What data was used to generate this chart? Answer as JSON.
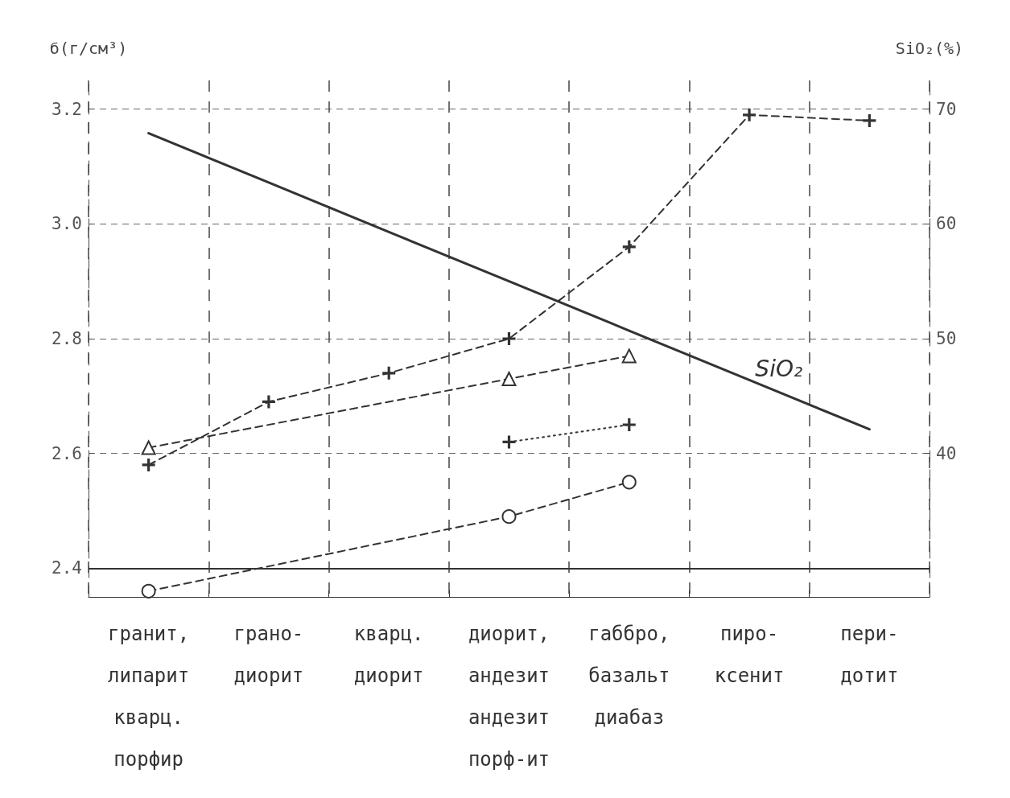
{
  "chart_data": {
    "type": "line",
    "ylabel": "б(г/см³)",
    "y2label": "SiO₂(%)",
    "categories": [
      "гранит,\nлипарит\nкварц.\nпорфир",
      "грано-\nдиорит",
      "кварц.\nдиорит",
      "диорит,\nандезит\nандезит\nпорф-ит",
      "габбро,\nбазальт\nдиабаз",
      "пиро-\nксенит",
      "пери-\nдотит"
    ],
    "ylim": [
      2.35,
      3.25
    ],
    "yticks": [
      2.4,
      2.6,
      2.8,
      {
        "value": 3,
        "label": "3.0"
      },
      3.2
    ],
    "y2lim": [
      27.5,
      72.5
    ],
    "y2ticks": [
      40,
      50,
      60,
      70
    ],
    "grid": true,
    "legend": false,
    "ref_lines": [
      {
        "axis": "y",
        "value": 2.4,
        "color": "#333333",
        "line_style": "solid"
      }
    ],
    "series": [
      {
        "name": "SiO₂",
        "axis": "y2",
        "color": "#333333",
        "marker": "none",
        "line_style": "solid",
        "values": [
          67.9,
          63.6,
          59.3,
          55.0,
          50.7,
          46.4,
          42.1
        ]
      },
      {
        "color": "#333333",
        "marker": "cross",
        "line_style": "dashed",
        "values": [
          2.58,
          2.69,
          2.74,
          2.8,
          2.96,
          3.19,
          3.18
        ]
      },
      {
        "color": "#333333",
        "marker": "triangle",
        "line_style": "dashed",
        "values": [
          2.61,
          null,
          null,
          2.73,
          2.77,
          null,
          null
        ]
      },
      {
        "color": "#333333",
        "marker": "cross",
        "line_style": "dotted",
        "values": [
          null,
          null,
          null,
          2.62,
          2.65,
          null,
          null
        ]
      },
      {
        "color": "#333333",
        "marker": "circle",
        "line_style": "dashed",
        "values": [
          2.36,
          null,
          null,
          2.49,
          2.55,
          null,
          null
        ]
      }
    ]
  }
}
